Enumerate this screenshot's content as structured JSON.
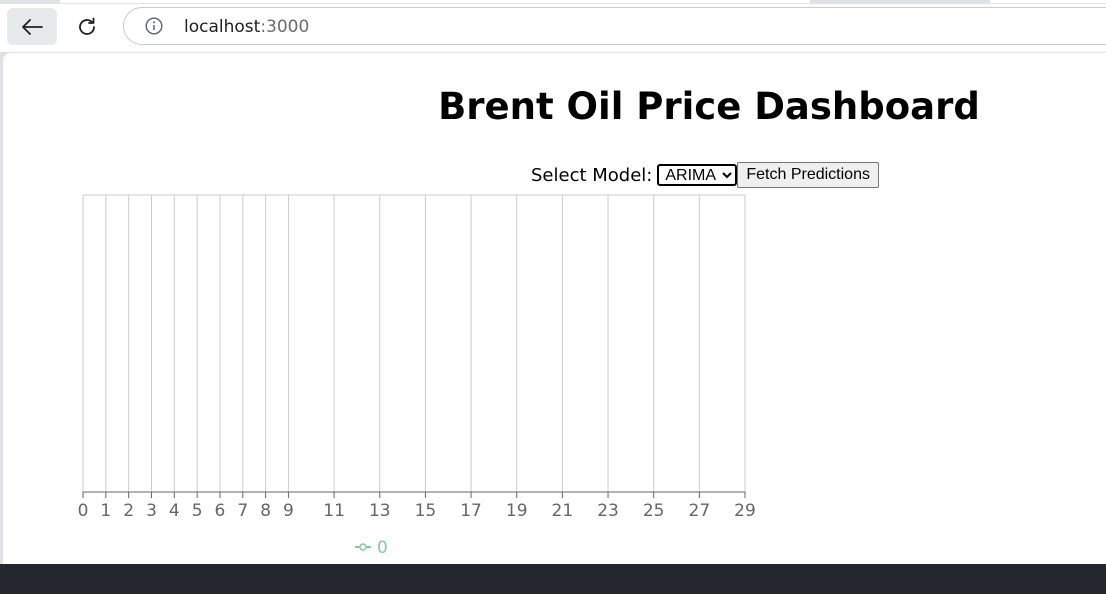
{
  "browser": {
    "url_host": "localhost",
    "url_port": ":3000",
    "back_icon": "arrow-left-icon",
    "reload_icon": "reload-icon",
    "info_icon": "info-icon"
  },
  "page": {
    "title": "Brent Oil Price Dashboard",
    "select_label": "Select Model:",
    "select_value": "ARIMA",
    "select_options": [
      "ARIMA"
    ],
    "fetch_button_label": "Fetch Predictions"
  },
  "chart_data": {
    "type": "line",
    "title": "",
    "xlabel": "",
    "ylabel": "",
    "x_ticks": [
      0,
      1,
      2,
      3,
      4,
      5,
      6,
      7,
      8,
      9,
      11,
      13,
      15,
      17,
      19,
      21,
      23,
      25,
      27,
      29
    ],
    "grid_x": [
      0,
      1,
      2,
      3,
      4,
      5,
      6,
      7,
      8,
      9,
      11,
      13,
      15,
      17,
      19,
      21,
      23,
      25,
      27,
      29
    ],
    "xlim": [
      0,
      29
    ],
    "series": [
      {
        "name": "0",
        "color": "#82ca9d",
        "values": []
      }
    ],
    "legend_position": "bottom",
    "grid": true,
    "colors": {
      "grid": "#cccccc",
      "axis": "#666666",
      "tick_text": "#666666"
    }
  }
}
